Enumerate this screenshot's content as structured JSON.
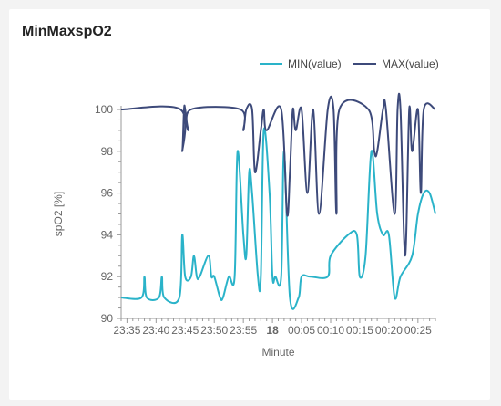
{
  "title": "MinMaxspO2",
  "chart_data": {
    "type": "line",
    "title": "MinMaxspO2",
    "xlabel": "Minute",
    "ylabel": "spO2 [%]",
    "ylim": [
      90,
      100
    ],
    "y_ticks": [
      90,
      92,
      94,
      96,
      98,
      100
    ],
    "x_tick_labels": [
      "23:35",
      "23:40",
      "23:45",
      "23:50",
      "23:55",
      "18",
      "00:05",
      "00:10",
      "00:15",
      "00:20",
      "00:25"
    ],
    "x_tick_times": [
      -25,
      -20,
      -15,
      -10,
      -5,
      0,
      5,
      10,
      15,
      20,
      25
    ],
    "x_range": [
      -26,
      28
    ],
    "grid": false,
    "legend_position": "top-right",
    "series": [
      {
        "name": "MIN(value)",
        "color": "#2ab3c9",
        "x": [
          -26,
          -22.5,
          -22,
          -21.6,
          -19.5,
          -19,
          -18.6,
          -16,
          -15.5,
          -15,
          -14,
          -13.5,
          -13,
          -12.5,
          -11,
          -10.5,
          -10,
          -9,
          -8.5,
          -7.5,
          -6.5,
          -6,
          -5,
          -4.5,
          -4,
          -3.5,
          -2.5,
          -2,
          -1.5,
          -0.5,
          0,
          0.5,
          1.5,
          2,
          3,
          4.5,
          5,
          6.5,
          9.5,
          10,
          13,
          14.5,
          15,
          16,
          17,
          18,
          19,
          20,
          21,
          22,
          24,
          25,
          26,
          27,
          28
        ],
        "y": [
          91,
          91,
          92,
          91,
          91,
          92,
          91,
          91,
          94,
          92,
          92,
          93,
          92,
          92,
          93,
          92,
          92,
          91,
          91,
          92,
          92,
          98,
          94,
          93,
          97,
          96,
          92,
          92,
          99,
          96,
          92,
          92,
          92,
          98,
          91,
          91,
          92,
          92,
          92,
          93,
          94,
          94,
          92,
          93,
          98,
          95,
          94,
          94,
          91,
          92,
          93,
          95,
          96,
          96,
          95
        ]
      },
      {
        "name": "MAX(value)",
        "color": "#3d4a7a",
        "x": [
          -26,
          -15.8,
          -15.5,
          -15.2,
          -15,
          -14.5,
          -14,
          -5.5,
          -5,
          -4.5,
          -3.5,
          -3,
          -2,
          -1.5,
          -1,
          1.5,
          2.5,
          3,
          3.5,
          4,
          5,
          6,
          7,
          8,
          9.5,
          10.5,
          11,
          11.5,
          16.5,
          17.5,
          18,
          19,
          19.5,
          21,
          21.5,
          22,
          22.8,
          23.5,
          24,
          25,
          25.5,
          26,
          28
        ],
        "y": [
          100,
          100,
          98,
          100,
          100,
          99,
          100,
          100,
          99,
          100,
          100,
          97,
          99,
          100,
          99,
          100,
          95,
          97,
          100,
          99,
          100,
          96,
          100,
          95,
          100,
          100,
          95,
          100,
          100,
          98,
          98,
          100,
          100,
          95,
          100,
          100,
          93,
          100,
          98,
          100,
          96,
          100,
          100
        ]
      }
    ]
  }
}
